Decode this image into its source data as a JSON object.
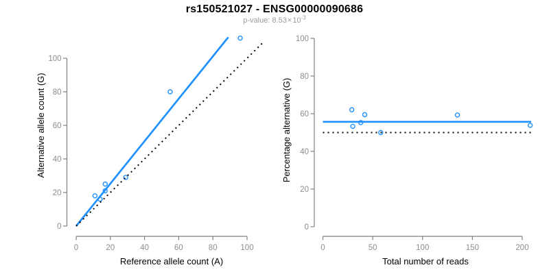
{
  "header": {
    "title": "rs150521027 - ENSG00000090686",
    "subtitle_prefix": "p-value: 8.53",
    "subtitle_times": "×",
    "subtitle_base": "10",
    "subtitle_exponent": "-3"
  },
  "colors": {
    "accent": "#1E90FF",
    "axis_line": "#808080",
    "tick_label": "#8c8c8c",
    "axis_title": "#000000",
    "title": "#000000",
    "subtitle": "#9b9b9b",
    "dotted_line": "#000000"
  },
  "chart_data": [
    {
      "type": "scatter",
      "panel": "left",
      "xlabel": "Reference allele count (A)",
      "ylabel": "Alternative allele count (G)",
      "xlim": [
        0,
        100
      ],
      "ylim": [
        0,
        112
      ],
      "xticks": [
        0,
        20,
        40,
        60,
        80,
        100
      ],
      "yticks": [
        0,
        20,
        40,
        60,
        80,
        100
      ],
      "grid": false,
      "points": [
        [
          11,
          18
        ],
        [
          14,
          16
        ],
        [
          17,
          21
        ],
        [
          17,
          25
        ],
        [
          29,
          29
        ],
        [
          55,
          80
        ],
        [
          96,
          112
        ]
      ],
      "lines": [
        {
          "name": "regression",
          "style": "solid",
          "color": "#1E90FF",
          "from": [
            0,
            0
          ],
          "to": [
            89,
            112.5
          ]
        },
        {
          "name": "identity",
          "style": "dotted",
          "color": "#000000",
          "from": [
            0,
            0
          ],
          "to": [
            109,
            109
          ]
        }
      ]
    },
    {
      "type": "scatter",
      "panel": "right",
      "xlabel": "Total number of reads",
      "ylabel": "Percentage alternative (G)",
      "xlim": [
        0,
        209
      ],
      "ylim": [
        0,
        100
      ],
      "xticks": [
        0,
        50,
        100,
        150,
        200
      ],
      "yticks": [
        0,
        20,
        40,
        60,
        80,
        100
      ],
      "grid": false,
      "points": [
        [
          29,
          62.1
        ],
        [
          30,
          53.3
        ],
        [
          38,
          55.3
        ],
        [
          42,
          59.5
        ],
        [
          58,
          50.0
        ],
        [
          135,
          59.3
        ],
        [
          208,
          53.8
        ]
      ],
      "lines": [
        {
          "name": "mean-percentage",
          "style": "solid",
          "color": "#1E90FF",
          "from": [
            0,
            55.7
          ],
          "to": [
            209,
            55.7
          ]
        },
        {
          "name": "expected-50",
          "style": "dotted",
          "color": "#000000",
          "from": [
            0,
            50
          ],
          "to": [
            209,
            50
          ]
        }
      ]
    }
  ]
}
